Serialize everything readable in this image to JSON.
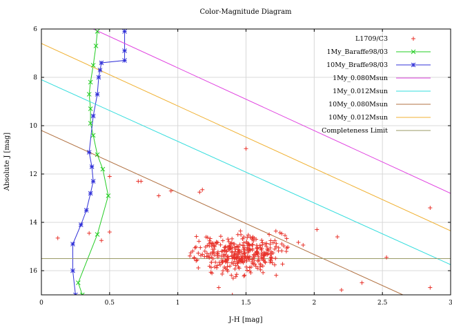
{
  "chart_data": {
    "type": "scatter",
    "title": "Color-Magnitude Diagram",
    "xlabel": "J-H [mag]",
    "ylabel": "Absolute J [mag]",
    "xlim": [
      0,
      3
    ],
    "ylim": [
      17,
      6
    ],
    "y_inverted": true,
    "grid": true,
    "legend_position": "top-right",
    "x_ticks": [
      "0",
      "0.5",
      "1",
      "1.5",
      "2",
      "2.5",
      "3"
    ],
    "y_ticks": [
      "6",
      "8",
      "10",
      "12",
      "14",
      "16"
    ],
    "x_tick_values": [
      0,
      0.5,
      1,
      1.5,
      2,
      2.5,
      3
    ],
    "y_tick_values": [
      6,
      8,
      10,
      12,
      14,
      16
    ],
    "series": [
      {
        "name": "L1709/C3",
        "kind": "points",
        "marker": "plus",
        "color": "#e8322a",
        "points": [
          [
            1.5,
            10.95
          ],
          [
            2.85,
            13.4
          ],
          [
            2.85,
            16.7
          ],
          [
            0.5,
            12.1
          ],
          [
            0.71,
            12.3
          ],
          [
            0.73,
            12.3
          ],
          [
            0.86,
            12.9
          ],
          [
            0.95,
            12.7
          ],
          [
            1.16,
            12.75
          ],
          [
            1.18,
            12.65
          ],
          [
            0.12,
            14.65
          ],
          [
            0.35,
            14.45
          ],
          [
            0.44,
            14.75
          ],
          [
            0.5,
            14.4
          ],
          [
            2.02,
            14.3
          ],
          [
            2.17,
            14.6
          ],
          [
            2.53,
            15.45
          ],
          [
            2.2,
            16.8
          ],
          [
            1.4,
            17.0
          ],
          [
            2.35,
            16.5
          ],
          [
            1.3,
            16.7
          ]
        ],
        "cloud": {
          "x_center": 1.45,
          "x_spread": 0.32,
          "y_center": 15.3,
          "y_spread": 0.65,
          "n": 360
        }
      },
      {
        "name": "1My_Baraffe98/03",
        "kind": "line",
        "marker": "x",
        "color": "#22cc22",
        "points": [
          [
            0.41,
            6.1
          ],
          [
            0.4,
            6.7
          ],
          [
            0.38,
            7.5
          ],
          [
            0.36,
            8.2
          ],
          [
            0.35,
            8.7
          ],
          [
            0.36,
            9.3
          ],
          [
            0.36,
            9.9
          ],
          [
            0.38,
            10.4
          ],
          [
            0.41,
            11.2
          ],
          [
            0.45,
            11.8
          ],
          [
            0.49,
            12.9
          ],
          [
            0.41,
            14.5
          ],
          [
            0.27,
            16.5
          ],
          [
            0.3,
            17.0
          ]
        ]
      },
      {
        "name": "10My_Braffe98/03",
        "kind": "line",
        "marker": "star",
        "color": "#3030d8",
        "points": [
          [
            0.61,
            6.1
          ],
          [
            0.61,
            6.9
          ],
          [
            0.61,
            7.3
          ],
          [
            0.44,
            7.4
          ],
          [
            0.43,
            7.7
          ],
          [
            0.42,
            8.0
          ],
          [
            0.41,
            8.7
          ],
          [
            0.38,
            9.6
          ],
          [
            0.35,
            11.1
          ],
          [
            0.37,
            11.7
          ],
          [
            0.38,
            12.3
          ],
          [
            0.36,
            12.8
          ],
          [
            0.33,
            13.5
          ],
          [
            0.29,
            14.1
          ],
          [
            0.23,
            14.9
          ],
          [
            0.23,
            16.0
          ],
          [
            0.25,
            17.0
          ]
        ]
      },
      {
        "name": "1My_0.080Msun",
        "kind": "line",
        "color": "#e040e0",
        "points": [
          [
            0.38,
            6.0
          ],
          [
            3.0,
            12.8
          ]
        ]
      },
      {
        "name": "1My_0.012Msun",
        "kind": "line",
        "color": "#33dddd",
        "points": [
          [
            0.0,
            8.1
          ],
          [
            3.0,
            15.75
          ]
        ]
      },
      {
        "name": "10My_0.080Msun",
        "kind": "line",
        "color": "#b07040",
        "points": [
          [
            0.0,
            10.2
          ],
          [
            2.65,
            17.0
          ]
        ]
      },
      {
        "name": "10My_0.012Msun",
        "kind": "line",
        "color": "#f0b030",
        "points": [
          [
            0.0,
            6.6
          ],
          [
            3.0,
            14.35
          ]
        ]
      },
      {
        "name": "Completeness Limit",
        "kind": "line",
        "color": "#999966",
        "points": [
          [
            0.0,
            15.5
          ],
          [
            3.0,
            15.5
          ]
        ]
      }
    ]
  }
}
